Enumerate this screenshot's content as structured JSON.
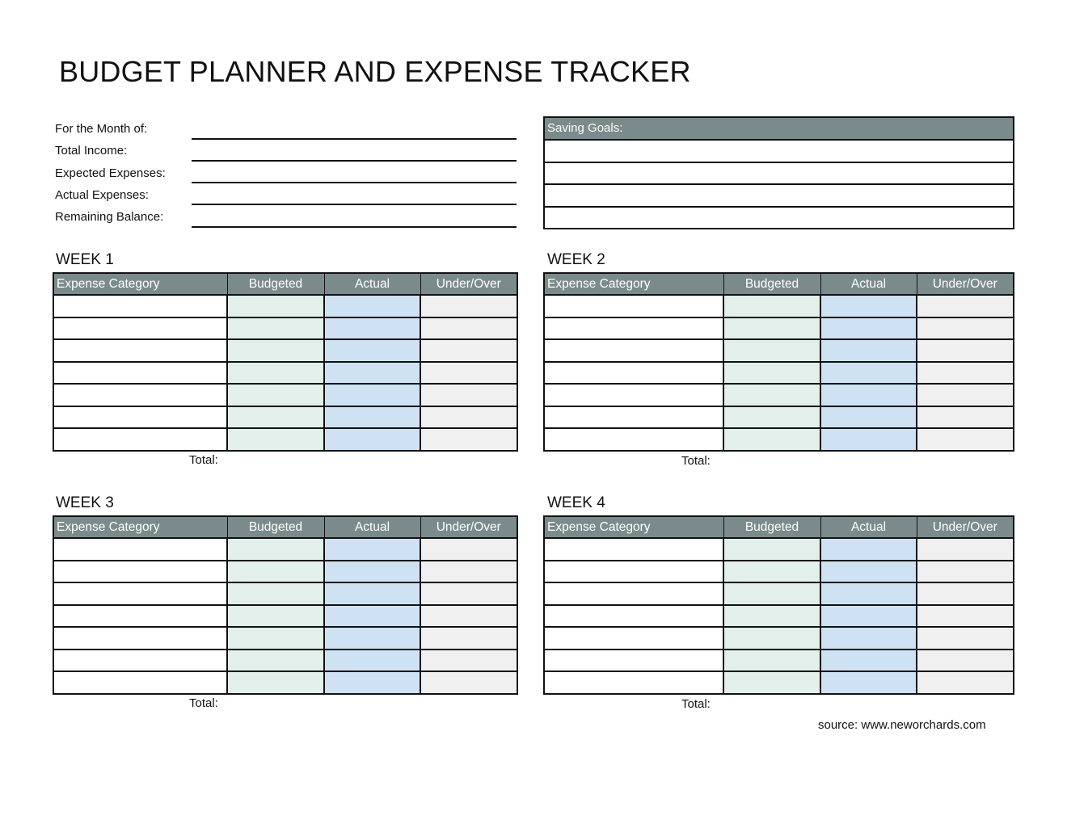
{
  "title": "BUDGET PLANNER AND EXPENSE TRACKER",
  "info": {
    "fields": [
      {
        "label": "For the Month of:",
        "value": ""
      },
      {
        "label": "Total Income:",
        "value": ""
      },
      {
        "label": "Expected Expenses:",
        "value": ""
      },
      {
        "label": "Actual Expenses:",
        "value": ""
      },
      {
        "label": "Remaining Balance:",
        "value": ""
      }
    ]
  },
  "saving_goals": {
    "label": "Saving Goals:",
    "rows": [
      "",
      "",
      "",
      ""
    ]
  },
  "columns": [
    "Expense Category",
    "Budgeted",
    "Actual",
    "Under/Over"
  ],
  "weeks": [
    {
      "title": "WEEK 1",
      "total_label": "Total:",
      "rows": 7
    },
    {
      "title": "WEEK 2",
      "total_label": "Total:",
      "rows": 7
    },
    {
      "title": "WEEK 3",
      "total_label": "Total:",
      "rows": 7
    },
    {
      "title": "WEEK 4",
      "total_label": "Total:",
      "rows": 7
    }
  ],
  "colors": {
    "header": "#7b8b8c",
    "budgeted": "#e2efea",
    "actual": "#cfe2f3",
    "under_over": "#f0f0f0"
  },
  "source": "source: www.neworchards.com"
}
